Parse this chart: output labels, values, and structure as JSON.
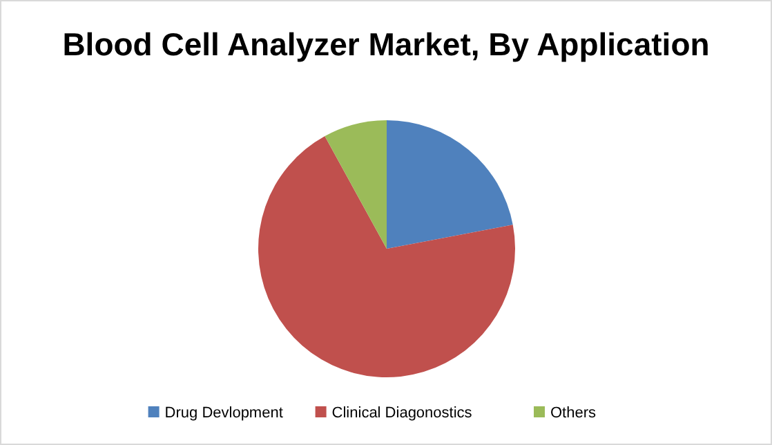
{
  "chart_data": {
    "type": "pie",
    "title": "Blood Cell Analyzer Market, By Application",
    "categories": [
      "Drug Devlopment",
      "Clinical Diagonostics",
      "Others"
    ],
    "values": [
      22,
      70,
      8
    ],
    "colors": [
      "#4f81bd",
      "#c0504d",
      "#9bbb59"
    ],
    "legend": "bottom"
  }
}
